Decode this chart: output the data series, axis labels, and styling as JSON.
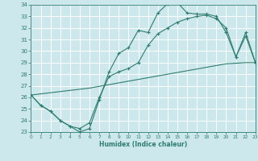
{
  "xlabel": "Humidex (Indice chaleur)",
  "ylabel": "",
  "bg_color": "#cce8ec",
  "grid_color": "#ffffff",
  "line_color": "#2e7d6e",
  "xmin": 0,
  "xmax": 23,
  "ymin": 23,
  "ymax": 34,
  "line1_x": [
    0,
    1,
    2,
    3,
    4,
    5,
    6,
    7,
    8,
    9,
    10,
    11,
    12,
    13,
    14,
    15,
    16,
    17,
    18,
    19,
    20,
    21,
    22,
    23
  ],
  "line1_y": [
    26.2,
    25.3,
    24.8,
    24.0,
    23.5,
    23.0,
    23.3,
    25.8,
    28.2,
    29.8,
    30.3,
    31.8,
    31.6,
    33.3,
    34.1,
    34.2,
    33.3,
    33.2,
    33.2,
    33.0,
    31.6,
    29.5,
    31.6,
    29.0
  ],
  "line2_x": [
    0,
    1,
    2,
    3,
    4,
    5,
    6,
    7,
    8,
    9,
    10,
    11,
    12,
    13,
    14,
    15,
    16,
    17,
    18,
    19,
    20,
    21,
    22,
    23
  ],
  "line2_y": [
    26.2,
    25.3,
    24.8,
    24.0,
    23.5,
    23.3,
    23.8,
    26.0,
    27.8,
    28.2,
    28.5,
    29.0,
    30.5,
    31.5,
    32.0,
    32.5,
    32.8,
    33.0,
    33.1,
    32.8,
    32.0,
    29.5,
    31.3,
    29.0
  ],
  "line3_x": [
    0,
    1,
    2,
    3,
    4,
    5,
    6,
    7,
    8,
    9,
    10,
    11,
    12,
    13,
    14,
    15,
    16,
    17,
    18,
    19,
    20,
    21,
    22,
    23
  ],
  "line3_y": [
    26.2,
    26.3,
    26.4,
    26.5,
    26.6,
    26.7,
    26.8,
    26.95,
    27.1,
    27.25,
    27.4,
    27.55,
    27.7,
    27.85,
    28.0,
    28.15,
    28.3,
    28.45,
    28.6,
    28.75,
    28.9,
    28.95,
    29.0,
    29.0
  ]
}
